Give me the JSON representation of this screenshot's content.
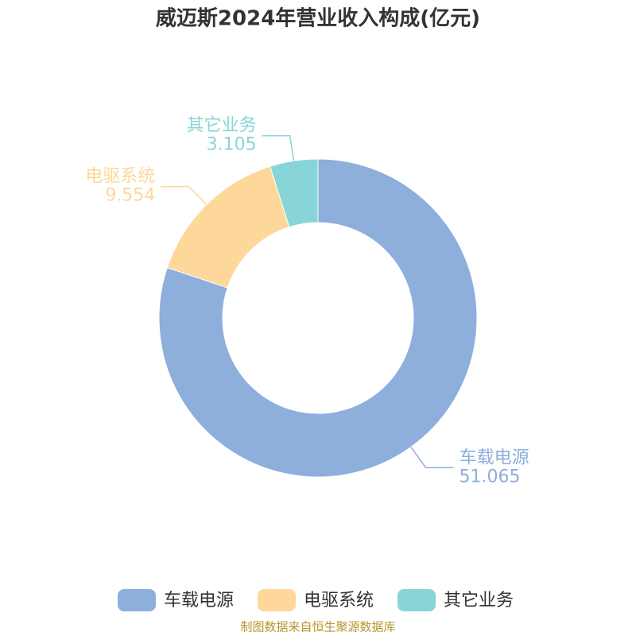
{
  "chart_data": {
    "type": "donut",
    "title": "威迈斯2024年营业收入构成(亿元)",
    "categories": [
      "车载电源",
      "电驱系统",
      "其它业务"
    ],
    "values": [
      51.065,
      9.554,
      3.105
    ],
    "colors": [
      "#8eaedb",
      "#fdd89a",
      "#88d5d8"
    ],
    "legend": "bottom",
    "source": "制图数据来自恒生聚源数据库"
  }
}
